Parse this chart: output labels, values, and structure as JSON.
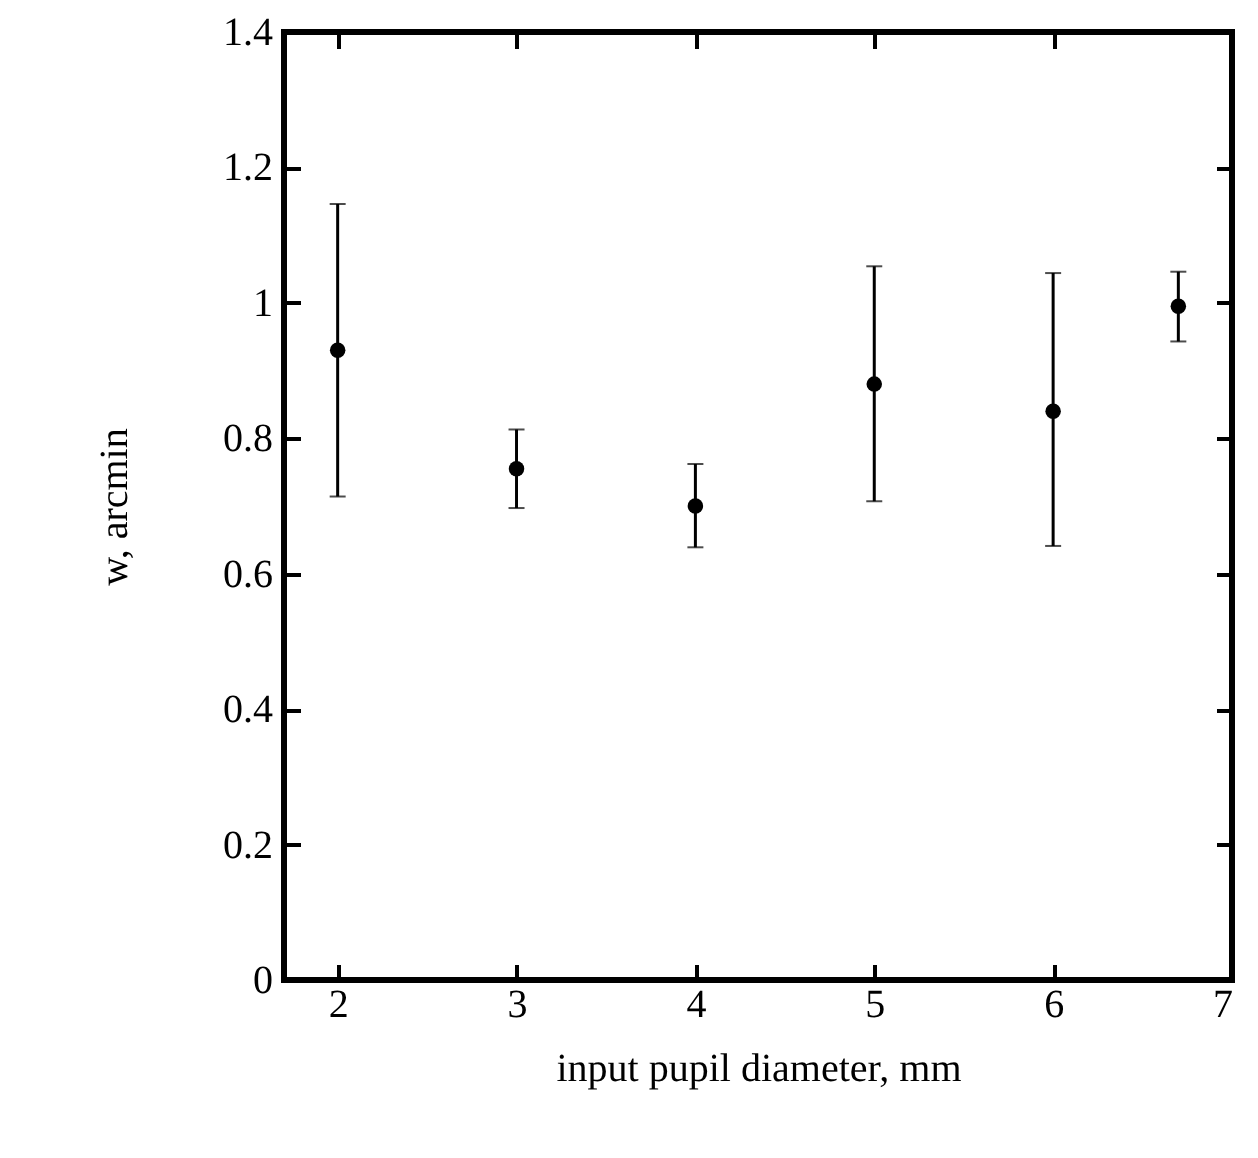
{
  "chart_data": {
    "type": "scatter",
    "xlabel": "input pupil diameter, mm",
    "ylabel": "w, arcmin",
    "x": [
      2,
      3,
      4,
      5,
      6,
      6.7
    ],
    "series": [
      {
        "color": "#000000",
        "values": [
          0.93,
          0.755,
          0.7,
          0.88,
          0.84,
          0.995
        ],
        "errors": [
          [
            0.714,
            1.146
          ],
          [
            0.697,
            0.813
          ],
          [
            0.639,
            0.762
          ],
          [
            0.707,
            1.054
          ],
          [
            0.641,
            1.044
          ],
          [
            0.943,
            1.046
          ]
        ]
      }
    ],
    "marker": "circle",
    "grid": false,
    "xlim": [
      1.7,
      7
    ],
    "xticks": [
      2,
      3,
      4,
      5,
      6,
      7
    ],
    "ylim": [
      0,
      1.4
    ],
    "yticks": [
      0,
      0.2,
      0.4,
      0.6,
      0.8,
      1,
      1.2,
      1.4
    ]
  }
}
